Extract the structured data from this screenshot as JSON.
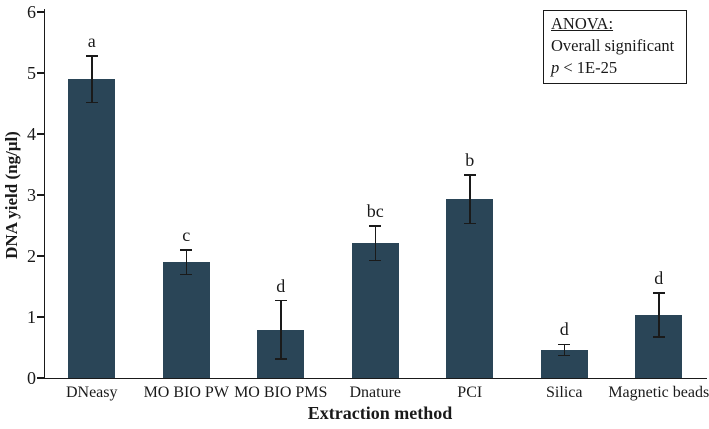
{
  "anova": {
    "title": "ANOVA:",
    "line1": "Overall significant",
    "p_symbol": "p",
    "p_rest": " < 1E-25"
  },
  "chart_data": {
    "type": "bar",
    "title": "",
    "xlabel": "Extraction method",
    "ylabel": "DNA yield (ng/μl)",
    "ylim": [
      0,
      6
    ],
    "yticks": [
      0,
      1,
      2,
      3,
      4,
      5,
      6
    ],
    "categories": [
      "DNeasy",
      "MO BIO PW",
      "MO BIO PMS",
      "Dnature",
      "PCI",
      "Silica",
      "Magnetic beads"
    ],
    "values": [
      4.9,
      1.9,
      0.79,
      2.21,
      2.93,
      0.46,
      1.03
    ],
    "errors": [
      0.38,
      0.2,
      0.48,
      0.28,
      0.4,
      0.09,
      0.36
    ],
    "sig_letters": [
      "a",
      "c",
      "d",
      "bc",
      "b",
      "d",
      "d"
    ],
    "bar_color": "#2A4557",
    "axis_color": "#1a1a1a",
    "grid": false,
    "legend": "none",
    "annotation": "ANOVA: Overall significant p < 1E-25"
  }
}
